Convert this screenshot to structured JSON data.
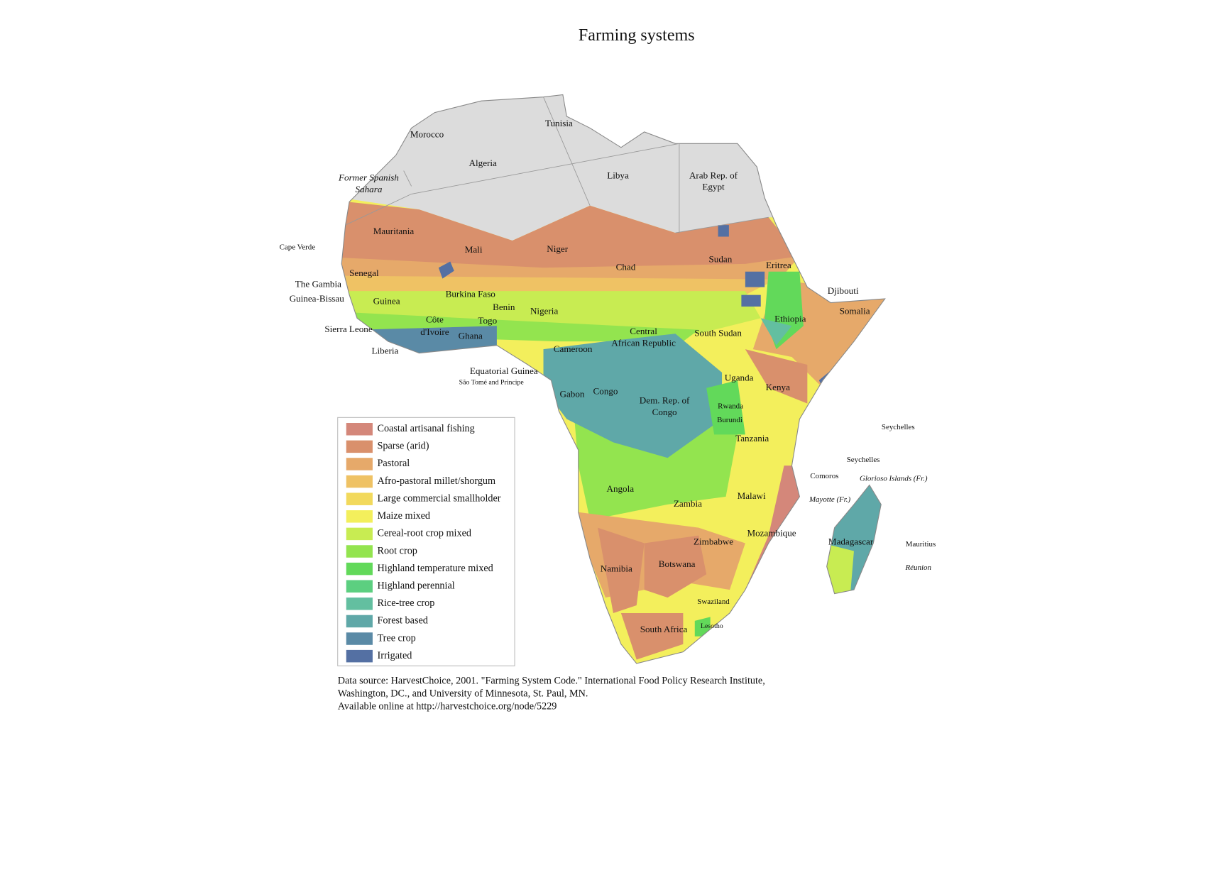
{
  "title": "Farming systems",
  "labels": [
    "Morocco",
    "Tunisia",
    "Algeria",
    "Libya",
    "Arab Rep. of",
    "Egypt",
    "Former Spanish",
    "Sahara",
    "Mauritania",
    "Mali",
    "Niger",
    "Chad",
    "Sudan",
    "Eritrea",
    "Djibouti",
    "Somalia",
    "Ethiopia",
    "Cape Verde",
    "Senegal",
    "The Gambia",
    "Guinea-Bissau",
    "Guinea",
    "Burkina Faso",
    "Benin",
    "Nigeria",
    "Togo",
    "Côte",
    "d'Ivoire",
    "Ghana",
    "Sierra Leone",
    "Liberia",
    "Central",
    "African Republic",
    "South Sudan",
    "Cameroon",
    "Equatorial Guinea",
    "São Tomé and Principe",
    "Gabon",
    "Congo",
    "Dem. Rep. of",
    "Congo",
    "Uganda",
    "Kenya",
    "Rwanda",
    "Burundi",
    "Tanzania",
    "Seychelles",
    "Seychelles",
    "Comoros",
    "Glorioso Islands (Fr.)",
    "Mayotte (Fr.)",
    "Angola",
    "Zambia",
    "Malawi",
    "Mozambique",
    "Zimbabwe",
    "Madagascar",
    "Mauritius",
    "Réunion",
    "Namibia",
    "Botswana",
    "Swaziland",
    "Lesotho",
    "South Africa"
  ],
  "legend": {
    "items": [
      {
        "name": "Coastal artisanal fishing",
        "color": "#d4877a"
      },
      {
        "name": "Sparse (arid)",
        "color": "#d9906c"
      },
      {
        "name": "Pastoral",
        "color": "#e6a96a"
      },
      {
        "name": "Afro-pastoral millet/shorgum",
        "color": "#efc264"
      },
      {
        "name": "Large commercial smallholder",
        "color": "#f2d95c"
      },
      {
        "name": "Maize mixed",
        "color": "#f3ef5c"
      },
      {
        "name": "Cereal-root crop mixed",
        "color": "#c8ec52"
      },
      {
        "name": "Root crop",
        "color": "#93e44f"
      },
      {
        "name": "Highland temperature mixed",
        "color": "#62d95a"
      },
      {
        "name": "Highland perennial",
        "color": "#5ccf80"
      },
      {
        "name": "Rice-tree crop",
        "color": "#63bfa0"
      },
      {
        "name": "Forest based",
        "color": "#5fa8a8"
      },
      {
        "name": "Tree crop",
        "color": "#5a8aa6"
      },
      {
        "name": "Irrigated",
        "color": "#5470a3"
      }
    ]
  },
  "source": [
    "Data source: HarvestChoice, 2001. \"Farming System Code.\" International Food Policy Research Institute,",
    "Washington, DC., and University of  Minnesota, St. Paul, MN.",
    "Available online at http://harvestchoice.org/node/5229"
  ]
}
